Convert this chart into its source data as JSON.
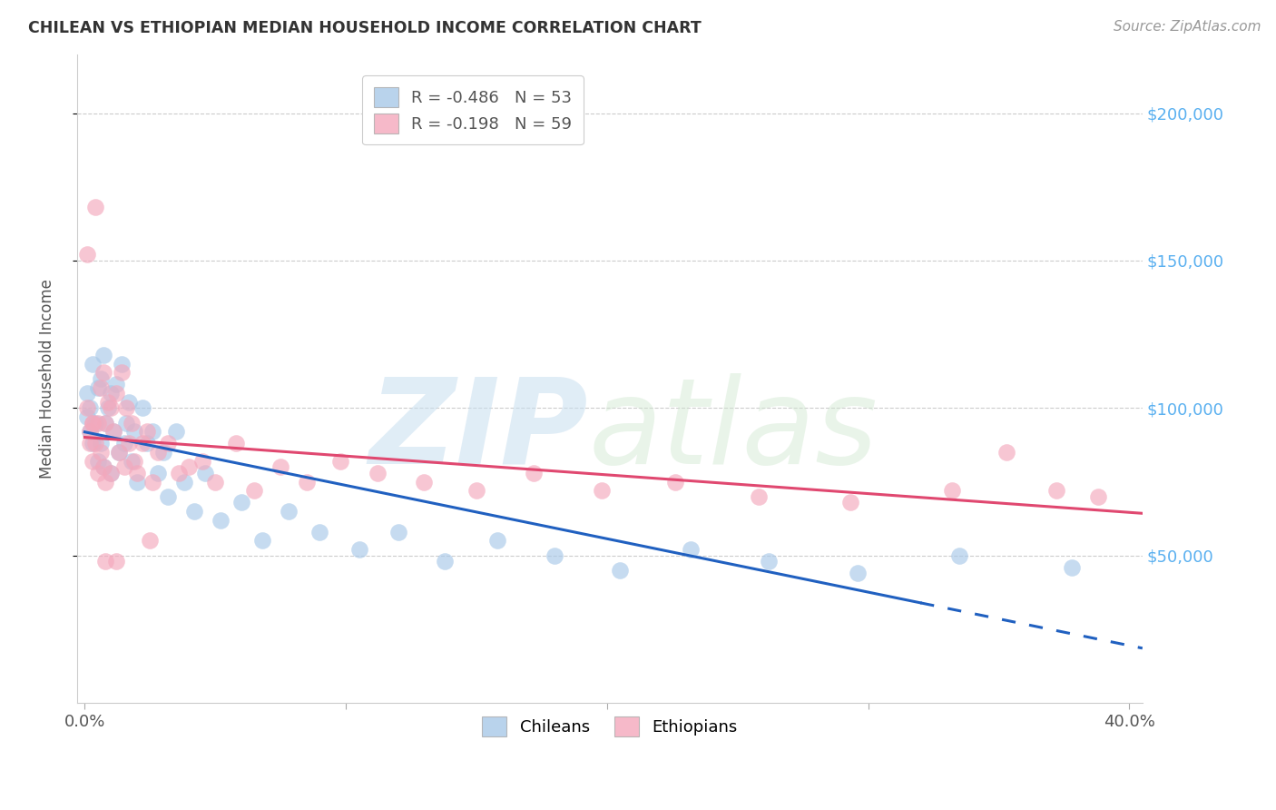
{
  "title": "CHILEAN VS ETHIOPIAN MEDIAN HOUSEHOLD INCOME CORRELATION CHART",
  "source": "Source: ZipAtlas.com",
  "ylabel": "Median Household Income",
  "ytick_labels": [
    "$50,000",
    "$100,000",
    "$150,000",
    "$200,000"
  ],
  "ytick_vals": [
    50000,
    100000,
    150000,
    200000
  ],
  "ylim": [
    0,
    220000
  ],
  "xlim": [
    -0.003,
    0.405
  ],
  "chilean_color": "#a8c8e8",
  "ethiopian_color": "#f4a8bc",
  "chilean_line_color": "#2060c0",
  "ethiopian_line_color": "#e04870",
  "watermark_zip": "ZIP",
  "watermark_atlas": "atlas",
  "legend_R_chilean": "R = -0.486",
  "legend_N_chilean": "N = 53",
  "legend_R_ethiopian": "R = -0.198",
  "legend_N_ethiopian": "N = 59",
  "ytick_color": "#5ab0f0",
  "chilean_points_x": [
    0.001,
    0.001,
    0.002,
    0.002,
    0.003,
    0.003,
    0.004,
    0.005,
    0.005,
    0.006,
    0.006,
    0.007,
    0.007,
    0.008,
    0.009,
    0.01,
    0.01,
    0.011,
    0.012,
    0.013,
    0.014,
    0.015,
    0.016,
    0.017,
    0.018,
    0.019,
    0.02,
    0.022,
    0.024,
    0.026,
    0.028,
    0.03,
    0.032,
    0.035,
    0.038,
    0.042,
    0.046,
    0.052,
    0.06,
    0.068,
    0.078,
    0.09,
    0.105,
    0.12,
    0.138,
    0.158,
    0.18,
    0.205,
    0.232,
    0.262,
    0.296,
    0.335,
    0.378
  ],
  "chilean_points_y": [
    105000,
    97000,
    100000,
    92000,
    115000,
    88000,
    95000,
    107000,
    82000,
    110000,
    88000,
    118000,
    80000,
    95000,
    100000,
    105000,
    78000,
    92000,
    108000,
    85000,
    115000,
    88000,
    95000,
    102000,
    82000,
    92000,
    75000,
    100000,
    88000,
    92000,
    78000,
    85000,
    70000,
    92000,
    75000,
    65000,
    78000,
    62000,
    68000,
    55000,
    65000,
    58000,
    52000,
    58000,
    48000,
    55000,
    50000,
    45000,
    52000,
    48000,
    44000,
    50000,
    46000
  ],
  "ethiopian_points_x": [
    0.001,
    0.001,
    0.002,
    0.002,
    0.003,
    0.003,
    0.004,
    0.004,
    0.005,
    0.005,
    0.006,
    0.006,
    0.007,
    0.007,
    0.008,
    0.008,
    0.009,
    0.01,
    0.01,
    0.011,
    0.012,
    0.013,
    0.014,
    0.015,
    0.016,
    0.017,
    0.018,
    0.019,
    0.02,
    0.022,
    0.024,
    0.026,
    0.028,
    0.032,
    0.036,
    0.04,
    0.045,
    0.05,
    0.058,
    0.065,
    0.075,
    0.085,
    0.098,
    0.112,
    0.13,
    0.15,
    0.172,
    0.198,
    0.226,
    0.258,
    0.293,
    0.332,
    0.353,
    0.372,
    0.388,
    0.012,
    0.025,
    0.008,
    0.003
  ],
  "ethiopian_points_y": [
    152000,
    100000,
    92000,
    88000,
    95000,
    82000,
    168000,
    88000,
    95000,
    78000,
    107000,
    85000,
    112000,
    80000,
    95000,
    75000,
    102000,
    100000,
    78000,
    92000,
    105000,
    85000,
    112000,
    80000,
    100000,
    88000,
    95000,
    82000,
    78000,
    88000,
    92000,
    75000,
    85000,
    88000,
    78000,
    80000,
    82000,
    75000,
    88000,
    72000,
    80000,
    75000,
    82000,
    78000,
    75000,
    72000,
    78000,
    72000,
    75000,
    70000,
    68000,
    72000,
    85000,
    72000,
    70000,
    48000,
    55000,
    48000,
    95000
  ],
  "chilean_line_x0": 0.0,
  "chilean_line_x1": 0.32,
  "chilean_line_xdash": 0.405,
  "ethiopian_line_x0": 0.0,
  "ethiopian_line_x1": 0.405
}
